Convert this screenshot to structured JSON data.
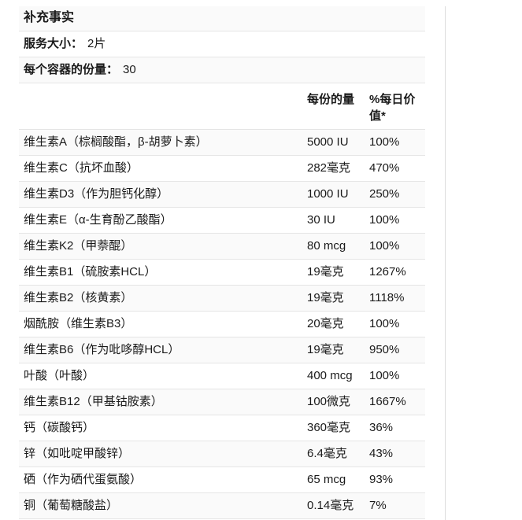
{
  "colors": {
    "divider": "#dcdcdc",
    "row_border": "#e5e5e5",
    "stripe": "#fafafa",
    "text": "#1a1a1a"
  },
  "supplement_facts": {
    "title": "补充事实",
    "serving_size": {
      "label": "服务大小：",
      "value": "2片"
    },
    "servings_per_container": {
      "label": "每个容器的份量：",
      "value": "30"
    },
    "columns": {
      "amount": "每份的量",
      "daily_value": "%每日价值*"
    },
    "rows": [
      {
        "name": "维生素A（棕榈酸酯，β-胡萝卜素）",
        "amount": "5000 IU",
        "dv": "100%"
      },
      {
        "name": "维生素C（抗坏血酸）",
        "amount": "282毫克",
        "dv": "470%"
      },
      {
        "name": "维生素D3（作为胆钙化醇）",
        "amount": "1000 IU",
        "dv": "250%"
      },
      {
        "name": "维生素E（α-生育酚乙酸酯）",
        "amount": "30 IU",
        "dv": "100%"
      },
      {
        "name": "维生素K2（甲萘醌）",
        "amount": "80 mcg",
        "dv": "100%"
      },
      {
        "name": "维生素B1（硫胺素HCL）",
        "amount": "19毫克",
        "dv": "1267%"
      },
      {
        "name": "维生素B2（核黄素）",
        "amount": "19毫克",
        "dv": "1118%"
      },
      {
        "name": "烟酰胺（维生素B3）",
        "amount": "20毫克",
        "dv": "100%"
      },
      {
        "name": "维生素B6（作为吡哆醇HCL）",
        "amount": "19毫克",
        "dv": "950%"
      },
      {
        "name": "叶酸（叶酸）",
        "amount": "400 mcg",
        "dv": "100%"
      },
      {
        "name": "维生素B12（甲基钴胺素）",
        "amount": "100微克",
        "dv": "1667%"
      },
      {
        "name": "钙（碳酸钙）",
        "amount": "360毫克",
        "dv": "36%"
      },
      {
        "name": "锌（如吡啶甲酸锌）",
        "amount": "6.4毫克",
        "dv": "43%"
      },
      {
        "name": "硒（作为硒代蛋氨酸）",
        "amount": "65 mcg",
        "dv": "93%"
      },
      {
        "name": "铜（葡萄糖酸盐）",
        "amount": "0.14毫克",
        "dv": "7%"
      }
    ]
  }
}
